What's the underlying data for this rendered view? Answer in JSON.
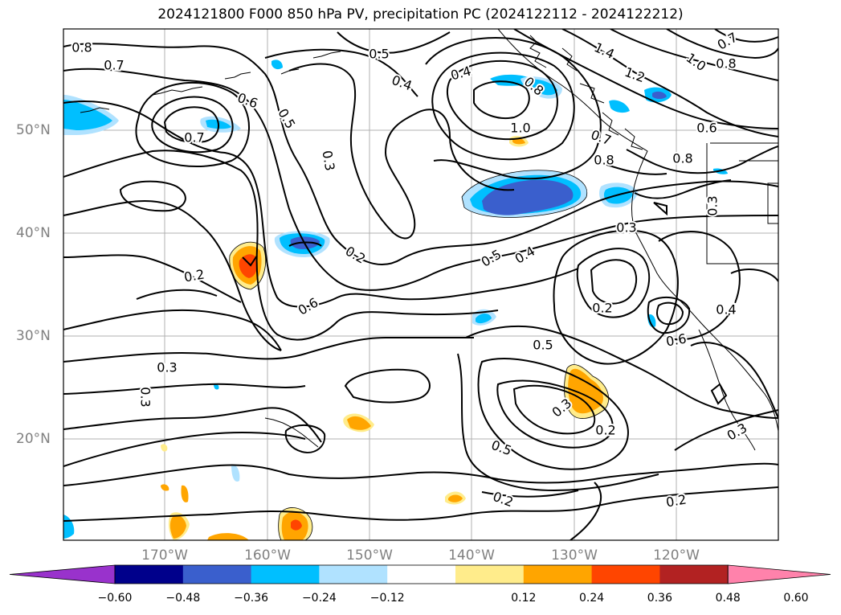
{
  "title": "2024121800 F000 850 hPa PV, precipitation PC (2024122112 - 2024122212)",
  "map": {
    "lat_labels": [
      "50°N",
      "40°N",
      "30°N",
      "20°N"
    ],
    "lon_labels": [
      "170°W",
      "160°W",
      "150°W",
      "140°W",
      "130°W",
      "120°W"
    ],
    "contour_labels": [
      "0.8",
      "0.7",
      "0.5",
      "0.4",
      "0.4",
      "1.4",
      "1.2",
      "1.0",
      "0.8",
      "0.7",
      "0.6",
      "0.5",
      "0.3",
      "0.8",
      "0.7",
      "1.0",
      "0.8",
      "0.7",
      "0.6",
      "0.8",
      "0.3",
      "0.2",
      "0.5",
      "0.4",
      "0.3",
      "0.2",
      "0.6",
      "0.2",
      "0.3",
      "0.3",
      "0.5",
      "0.3",
      "0.2",
      "0.5",
      "0.2",
      "0.6",
      "0.4",
      "0.3",
      "0.2"
    ]
  },
  "colorbar": {
    "colors": [
      "#9932cc",
      "#00008b",
      "#3a5fcd",
      "#00bfff",
      "#b0e2ff",
      "#ffffff",
      "#ffec8b",
      "#ffa500",
      "#ff4500",
      "#b22222",
      "#ff82ab"
    ],
    "ticks": [
      "−0.60",
      "−0.48",
      "−0.36",
      "−0.24",
      "−0.12",
      "0.12",
      "0.24",
      "0.36",
      "0.48",
      "0.60"
    ]
  }
}
